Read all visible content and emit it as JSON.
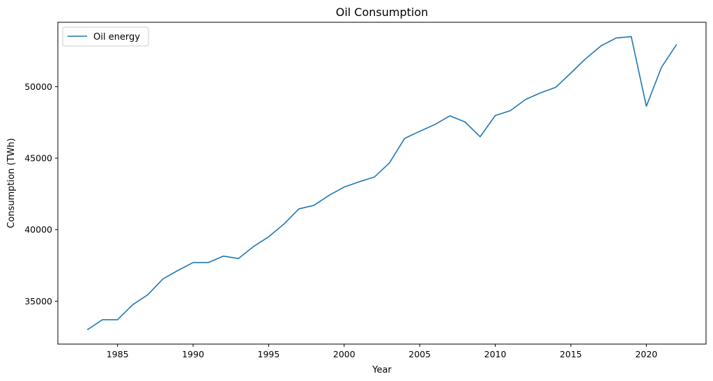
{
  "chart_data": {
    "type": "line",
    "title": "Oil Consumption",
    "xlabel": "Year",
    "ylabel": "Consumption (TWh)",
    "xlim": [
      1981.05,
      2023.95
    ],
    "ylim": [
      32000,
      54500
    ],
    "x_ticks": [
      1985,
      1990,
      1995,
      2000,
      2005,
      2010,
      2015,
      2020
    ],
    "y_ticks": [
      35000,
      40000,
      45000,
      50000
    ],
    "legend_position": "upper-left",
    "grid": false,
    "x": [
      1983,
      1984,
      1985,
      1986,
      1987,
      1988,
      1989,
      1990,
      1991,
      1992,
      1993,
      1994,
      1995,
      1996,
      1997,
      1998,
      1999,
      2000,
      2001,
      2002,
      2003,
      2004,
      2005,
      2006,
      2007,
      2008,
      2009,
      2010,
      2011,
      2012,
      2013,
      2014,
      2015,
      2016,
      2017,
      2018,
      2019,
      2020,
      2021,
      2022
    ],
    "series": [
      {
        "name": "Oil energy",
        "color": "#1f77b4",
        "values": [
          33000,
          33700,
          33700,
          34750,
          35450,
          36550,
          37150,
          37700,
          37700,
          38150,
          37980,
          38820,
          39500,
          40380,
          41450,
          41700,
          42400,
          42980,
          43350,
          43680,
          44670,
          46380,
          46880,
          47350,
          47960,
          47530,
          46500,
          47980,
          48320,
          49100,
          49570,
          49950,
          50950,
          51970,
          52850,
          53400,
          53500,
          48630,
          51350,
          52950
        ]
      }
    ]
  }
}
